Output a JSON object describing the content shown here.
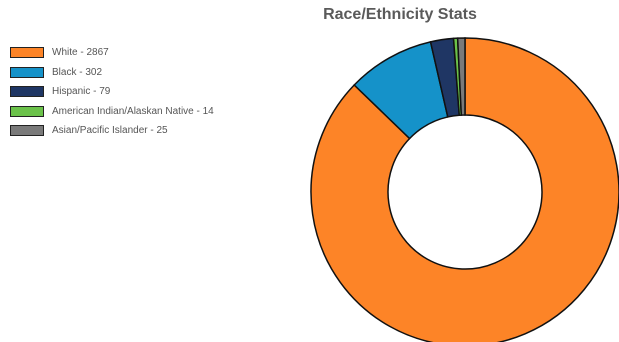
{
  "chart_data": {
    "type": "pie",
    "title": "Race/Ethnicity Stats",
    "categories": [
      "White",
      "Black",
      "Hispanic",
      "American Indian/Alaskan Native",
      "Asian/Pacific Islander"
    ],
    "values": [
      2867,
      302,
      79,
      14,
      25
    ],
    "legend_labels": [
      "White - 2867",
      "Black - 302",
      "Hispanic - 79",
      "American Indian/Alaskan Native - 14",
      "Asian/Pacific Islander - 25"
    ],
    "colors": [
      "#fd8427",
      "#1592c9",
      "#1f3664",
      "#6bc24a",
      "#7a7a7a"
    ],
    "legend_position": "top-left",
    "donut": true
  }
}
